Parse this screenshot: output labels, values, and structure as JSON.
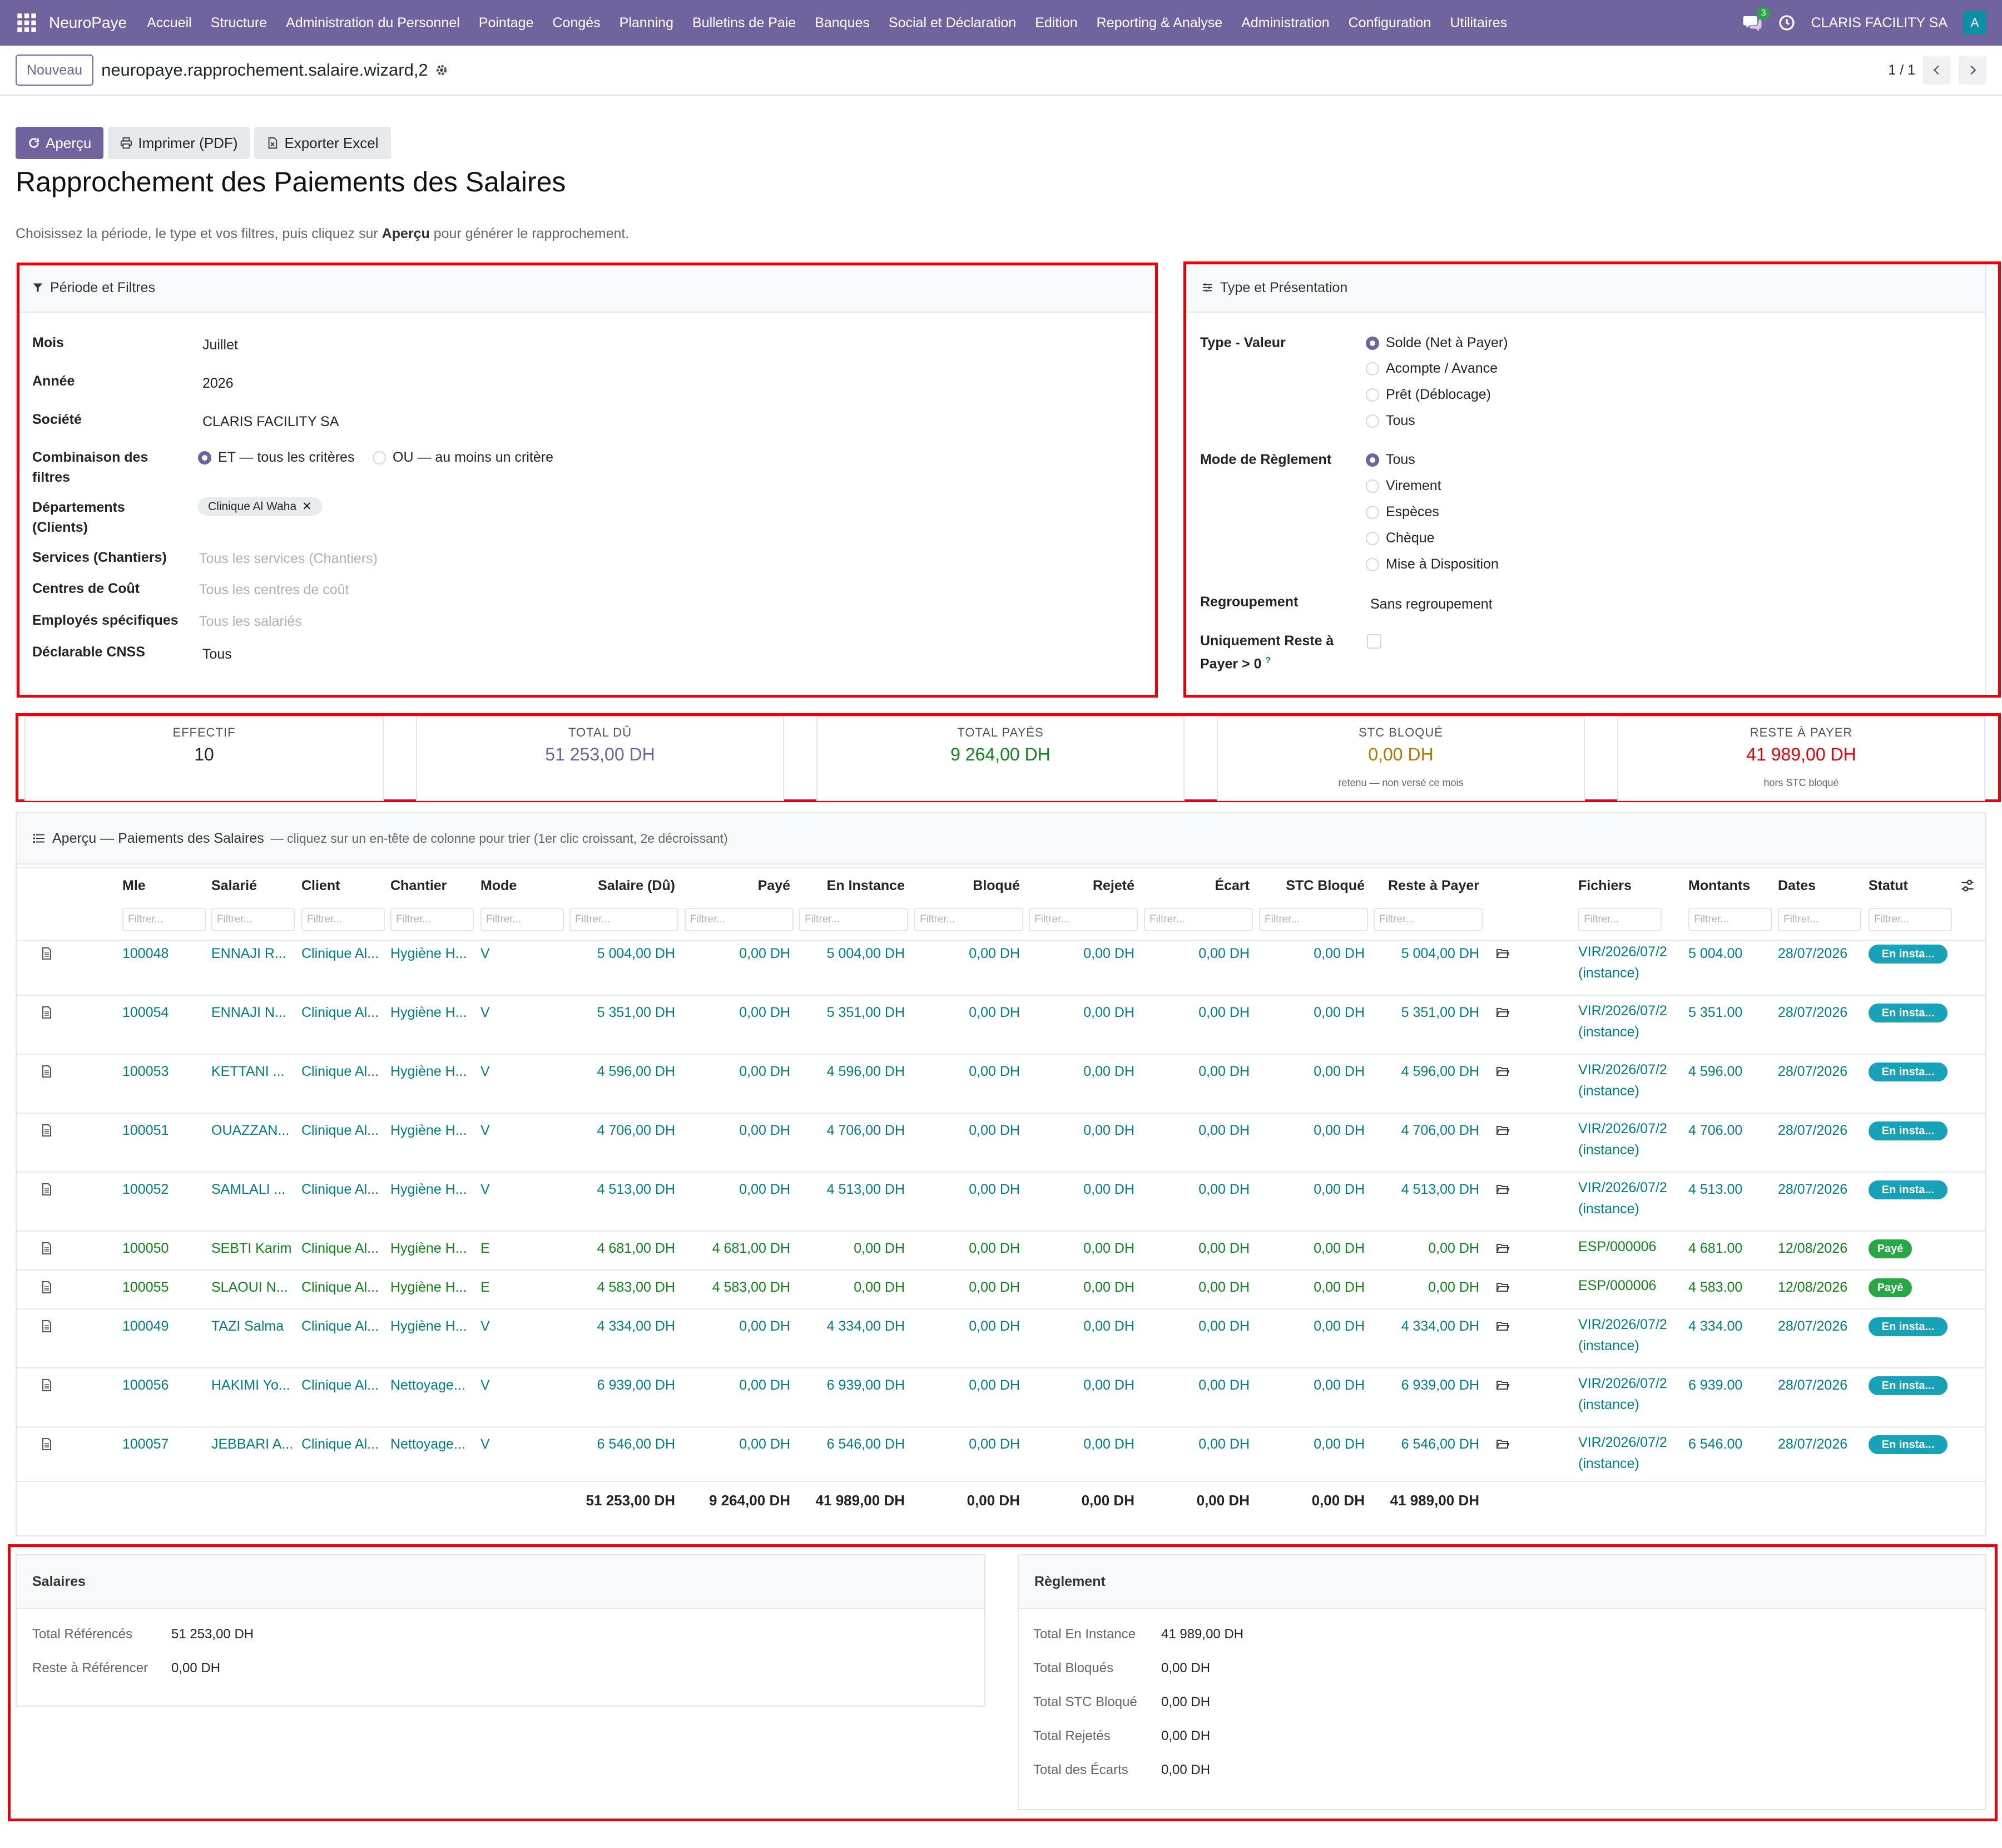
{
  "nav": {
    "brand": "NeuroPaye",
    "menu": [
      "Accueil",
      "Structure",
      "Administration du Personnel",
      "Pointage",
      "Congés",
      "Planning",
      "Bulletins de Paie",
      "Banques",
      "Social et Déclaration",
      "Edition",
      "Reporting & Analyse",
      "Administration",
      "Configuration",
      "Utilitaires"
    ],
    "chat_count": "3",
    "company": "CLARIS FACILITY SA",
    "avatar": "A"
  },
  "control": {
    "new_label": "Nouveau",
    "record_name": "neuropaye.rapprochement.salaire.wizard,2",
    "pager": "1 / 1"
  },
  "actions": {
    "preview": "Aperçu",
    "print": "Imprimer (PDF)",
    "export": "Exporter Excel"
  },
  "title": "Rapprochement des Paiements des Salaires",
  "intro": {
    "before": "Choisissez la période, le type et vos filtres, puis cliquez sur ",
    "bold": "Aperçu",
    "after": " pour générer le rapprochement."
  },
  "filters": {
    "header": "Période et Filtres",
    "mois_label": "Mois",
    "mois": "Juillet",
    "annee_label": "Année",
    "annee": "2026",
    "societe_label": "Société",
    "societe": "CLARIS FACILITY SA",
    "combi_label_1": "Combinaison des",
    "combi_label_2": "filtres",
    "combi_et": "ET — tous les critères",
    "combi_ou": "OU — au moins un critère",
    "dept_label_1": "Départements",
    "dept_label_2": "(Clients)",
    "dept_tag": "Clinique Al Waha",
    "services_label": "Services (Chantiers)",
    "services_ph": "Tous les services (Chantiers)",
    "centres_label": "Centres de Coût",
    "centres_ph": "Tous les centres de coût",
    "employes_label": "Employés spécifiques",
    "employes_ph": "Tous les salariés",
    "cnss_label": "Déclarable CNSS",
    "cnss": "Tous"
  },
  "type_pres": {
    "header": "Type et Présentation",
    "type_label": "Type - Valeur",
    "type_options": [
      "Solde (Net à Payer)",
      "Acompte / Avance",
      "Prêt (Déblocage)",
      "Tous"
    ],
    "mode_label": "Mode de Règlement",
    "mode_options": [
      "Tous",
      "Virement",
      "Espèces",
      "Chèque",
      "Mise à Disposition"
    ],
    "regroup_label": "Regroupement",
    "regroup": "Sans regroupement",
    "reste_label_1": "Uniquement Reste à",
    "reste_label_2": "Payer > 0",
    "help": "?"
  },
  "kpis": [
    {
      "label": "EFFECTIF",
      "value": "10",
      "sub": ""
    },
    {
      "label": "TOTAL DÛ",
      "value": "51 253,00 DH",
      "sub": ""
    },
    {
      "label": "TOTAL PAYÉS",
      "value": "9 264,00 DH",
      "sub": ""
    },
    {
      "label": "STC BLOQUÉ",
      "value": "0,00 DH",
      "sub": "retenu — non versé ce mois"
    },
    {
      "label": "RESTE À PAYER",
      "value": "41 989,00 DH",
      "sub": "hors STC bloqué"
    }
  ],
  "colors": {
    "accent": "#71639e",
    "teal": "#017e84",
    "green": "#12831c",
    "red": "#e8000b",
    "dark_yellow": "#b07a00",
    "purple_value": "#71639e"
  },
  "table": {
    "header": "Aperçu — Paiements des Salaires",
    "hint": "— cliquez sur un en-tête de colonne pour trier (1er clic croissant, 2e décroissant)",
    "columns": [
      "Mle",
      "Salarié",
      "Client",
      "Chantier",
      "Mode",
      "Salaire (Dû)",
      "Payé",
      "En Instance",
      "Bloqué",
      "Rejeté",
      "Écart",
      "STC Bloqué",
      "Reste à Payer",
      "Fichiers",
      "Montants",
      "Dates",
      "Statut"
    ],
    "filter_placeholder": "Filtrer...",
    "rows": [
      {
        "mle": "100048",
        "salarie": "ENNAJI R...",
        "client": "Clinique Al...",
        "chantier": "Hygiène H...",
        "mode": "V",
        "du": "5 004,00 DH",
        "paye": "0,00 DH",
        "instance": "5 004,00 DH",
        "bloque": "0,00 DH",
        "rejete": "0,00 DH",
        "ecart": "0,00 DH",
        "stc": "0,00 DH",
        "reste": "5 004,00 DH",
        "fichier": "VIR/2026/07/2",
        "fichier2": "(instance)",
        "montant": "5 004.00",
        "date": "28/07/2026",
        "statut": "En insta...",
        "paid": false
      },
      {
        "mle": "100054",
        "salarie": "ENNAJI N...",
        "client": "Clinique Al...",
        "chantier": "Hygiène H...",
        "mode": "V",
        "du": "5 351,00 DH",
        "paye": "0,00 DH",
        "instance": "5 351,00 DH",
        "bloque": "0,00 DH",
        "rejete": "0,00 DH",
        "ecart": "0,00 DH",
        "stc": "0,00 DH",
        "reste": "5 351,00 DH",
        "fichier": "VIR/2026/07/2",
        "fichier2": "(instance)",
        "montant": "5 351.00",
        "date": "28/07/2026",
        "statut": "En insta...",
        "paid": false
      },
      {
        "mle": "100053",
        "salarie": "KETTANI ...",
        "client": "Clinique Al...",
        "chantier": "Hygiène H...",
        "mode": "V",
        "du": "4 596,00 DH",
        "paye": "0,00 DH",
        "instance": "4 596,00 DH",
        "bloque": "0,00 DH",
        "rejete": "0,00 DH",
        "ecart": "0,00 DH",
        "stc": "0,00 DH",
        "reste": "4 596,00 DH",
        "fichier": "VIR/2026/07/2",
        "fichier2": "(instance)",
        "montant": "4 596.00",
        "date": "28/07/2026",
        "statut": "En insta...",
        "paid": false
      },
      {
        "mle": "100051",
        "salarie": "OUAZZAN...",
        "client": "Clinique Al...",
        "chantier": "Hygiène H...",
        "mode": "V",
        "du": "4 706,00 DH",
        "paye": "0,00 DH",
        "instance": "4 706,00 DH",
        "bloque": "0,00 DH",
        "rejete": "0,00 DH",
        "ecart": "0,00 DH",
        "stc": "0,00 DH",
        "reste": "4 706,00 DH",
        "fichier": "VIR/2026/07/2",
        "fichier2": "(instance)",
        "montant": "4 706.00",
        "date": "28/07/2026",
        "statut": "En insta...",
        "paid": false
      },
      {
        "mle": "100052",
        "salarie": "SAMLALI ...",
        "client": "Clinique Al...",
        "chantier": "Hygiène H...",
        "mode": "V",
        "du": "4 513,00 DH",
        "paye": "0,00 DH",
        "instance": "4 513,00 DH",
        "bloque": "0,00 DH",
        "rejete": "0,00 DH",
        "ecart": "0,00 DH",
        "stc": "0,00 DH",
        "reste": "4 513,00 DH",
        "fichier": "VIR/2026/07/2",
        "fichier2": "(instance)",
        "montant": "4 513.00",
        "date": "28/07/2026",
        "statut": "En insta...",
        "paid": false
      },
      {
        "mle": "100050",
        "salarie": "SEBTI Karim",
        "client": "Clinique Al...",
        "chantier": "Hygiène H...",
        "mode": "E",
        "du": "4 681,00 DH",
        "paye": "4 681,00 DH",
        "instance": "0,00 DH",
        "bloque": "0,00 DH",
        "rejete": "0,00 DH",
        "ecart": "0,00 DH",
        "stc": "0,00 DH",
        "reste": "0,00 DH",
        "fichier": "ESP/000006",
        "fichier2": "",
        "montant": "4 681.00",
        "date": "12/08/2026",
        "statut": "Payé",
        "paid": true
      },
      {
        "mle": "100055",
        "salarie": "SLAOUI N...",
        "client": "Clinique Al...",
        "chantier": "Hygiène H...",
        "mode": "E",
        "du": "4 583,00 DH",
        "paye": "4 583,00 DH",
        "instance": "0,00 DH",
        "bloque": "0,00 DH",
        "rejete": "0,00 DH",
        "ecart": "0,00 DH",
        "stc": "0,00 DH",
        "reste": "0,00 DH",
        "fichier": "ESP/000006",
        "fichier2": "",
        "montant": "4 583.00",
        "date": "12/08/2026",
        "statut": "Payé",
        "paid": true
      },
      {
        "mle": "100049",
        "salarie": "TAZI Salma",
        "client": "Clinique Al...",
        "chantier": "Hygiène H...",
        "mode": "V",
        "du": "4 334,00 DH",
        "paye": "0,00 DH",
        "instance": "4 334,00 DH",
        "bloque": "0,00 DH",
        "rejete": "0,00 DH",
        "ecart": "0,00 DH",
        "stc": "0,00 DH",
        "reste": "4 334,00 DH",
        "fichier": "VIR/2026/07/2",
        "fichier2": "(instance)",
        "montant": "4 334.00",
        "date": "28/07/2026",
        "statut": "En insta...",
        "paid": false
      },
      {
        "mle": "100056",
        "salarie": "HAKIMI Yo...",
        "client": "Clinique Al...",
        "chantier": "Nettoyage...",
        "mode": "V",
        "du": "6 939,00 DH",
        "paye": "0,00 DH",
        "instance": "6 939,00 DH",
        "bloque": "0,00 DH",
        "rejete": "0,00 DH",
        "ecart": "0,00 DH",
        "stc": "0,00 DH",
        "reste": "6 939,00 DH",
        "fichier": "VIR/2026/07/2",
        "fichier2": "(instance)",
        "montant": "6 939.00",
        "date": "28/07/2026",
        "statut": "En insta...",
        "paid": false
      },
      {
        "mle": "100057",
        "salarie": "JEBBARI A...",
        "client": "Clinique Al...",
        "chantier": "Nettoyage...",
        "mode": "V",
        "du": "6 546,00 DH",
        "paye": "0,00 DH",
        "instance": "6 546,00 DH",
        "bloque": "0,00 DH",
        "rejete": "0,00 DH",
        "ecart": "0,00 DH",
        "stc": "0,00 DH",
        "reste": "6 546,00 DH",
        "fichier": "VIR/2026/07/2",
        "fichier2": "(instance)",
        "montant": "6 546.00",
        "date": "28/07/2026",
        "statut": "En insta...",
        "paid": false
      }
    ],
    "totals": {
      "du": "51 253,00 DH",
      "paye": "9 264,00 DH",
      "instance": "41 989,00 DH",
      "bloque": "0,00 DH",
      "rejete": "0,00 DH",
      "ecart": "0,00 DH",
      "stc": "0,00 DH",
      "reste": "41 989,00 DH"
    }
  },
  "salaires": {
    "header": "Salaires",
    "ref_label": "Total Référencés",
    "ref": "51 253,00 DH",
    "reste_label": "Reste à Référencer",
    "reste": "0,00 DH"
  },
  "reglement": {
    "header": "Règlement",
    "items": [
      {
        "label": "Total En Instance",
        "value": "41 989,00 DH"
      },
      {
        "label": "Total Bloqués",
        "value": "0,00 DH"
      },
      {
        "label": "Total STC Bloqué",
        "value": "0,00 DH"
      },
      {
        "label": "Total Rejetés",
        "value": "0,00 DH"
      },
      {
        "label": "Total des Écarts",
        "value": "0,00 DH"
      }
    ]
  }
}
